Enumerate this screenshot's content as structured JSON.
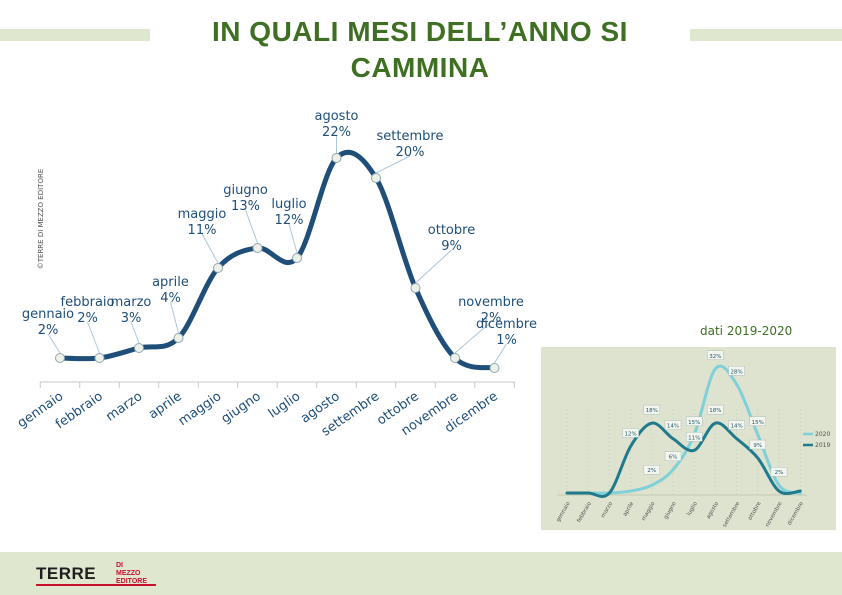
{
  "header": {
    "title": "IN QUALI MESI DELL’ANNO SI CAMMINA"
  },
  "copyright": "©TERRE DI MEZZO EDITORE",
  "colors": {
    "main_line": "#1f4e79",
    "title": "#3f6f22",
    "band": "#dfe8cf",
    "series_2020": "#7fd0d8",
    "series_2019": "#1f7a8c"
  },
  "chart_data": [
    {
      "type": "line",
      "categories": [
        "gennaio",
        "febbraio",
        "marzo",
        "aprile",
        "maggio",
        "giugno",
        "luglio",
        "agosto",
        "settembre",
        "ottobre",
        "novembre",
        "dicembre"
      ],
      "values": [
        2,
        2,
        3,
        4,
        11,
        13,
        12,
        22,
        20,
        9,
        2,
        1
      ],
      "data_labels": [
        "2%",
        "2%",
        "3%",
        "4%",
        "11%",
        "13%",
        "12%",
        "22%",
        "20%",
        "9%",
        "2%",
        "1%"
      ],
      "ylim": [
        0,
        24
      ],
      "grid": false
    },
    {
      "type": "line",
      "caption": "dati 2019-2020",
      "categories": [
        "gennaio",
        "febbraio",
        "marzo",
        "aprile",
        "maggio",
        "giugno",
        "luglio",
        "agosto",
        "settembre",
        "ottobre",
        "novembre",
        "dicembre"
      ],
      "legend_position": "right",
      "series": [
        {
          "name": "2020",
          "values": [
            0,
            0,
            0,
            0.5,
            2,
            6,
            15,
            32,
            28,
            15,
            2,
            0
          ],
          "labels": [
            "",
            "",
            "",
            "",
            "2%",
            "6%",
            "15%",
            "32%",
            "28%",
            "15%",
            "2%",
            ""
          ]
        },
        {
          "name": "2019",
          "values": [
            0,
            0,
            0,
            12,
            18,
            14,
            11,
            18,
            14,
            9,
            0.5,
            0.5
          ],
          "labels": [
            "",
            "",
            "",
            "12%",
            "18%",
            "14%",
            "11%",
            "18%",
            "14%",
            "9%",
            "",
            ""
          ]
        }
      ],
      "ylim": [
        0,
        34
      ]
    }
  ],
  "footer": {
    "logo_main": "TERRE",
    "logo_sub1": "DI MEZZO",
    "logo_sub2": "EDITORE"
  }
}
